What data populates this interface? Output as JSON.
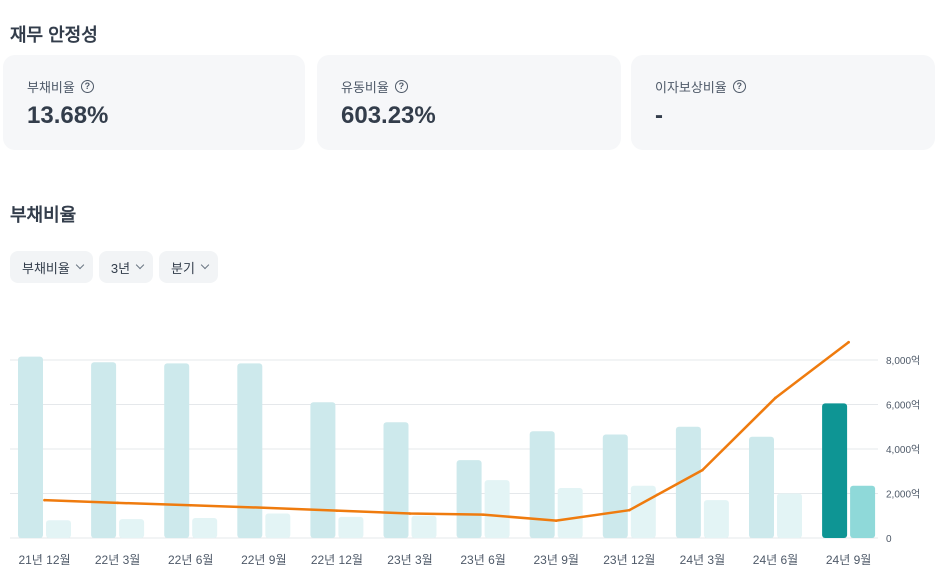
{
  "sections": {
    "stability_title": "재무 안정성",
    "chart_title": "부채비율"
  },
  "cards": [
    {
      "label": "부채비율",
      "value": "13.68%"
    },
    {
      "label": "유동비율",
      "value": "603.23%"
    },
    {
      "label": "이자보상비율",
      "value": "-"
    }
  ],
  "help_glyph": "?",
  "filters": [
    {
      "label": "부채비율"
    },
    {
      "label": "3년"
    },
    {
      "label": "분기"
    }
  ],
  "colors": {
    "bar_light": "#cde9ec",
    "bar_lighter": "#e3f4f5",
    "bar_highlight": "#0e9594",
    "bar_highlight_2": "#8fd9d9",
    "line": "#ef7b0e",
    "grid": "#e5e8eb"
  },
  "chart_data": {
    "type": "bar",
    "categories": [
      "21년 12월",
      "22년 3월",
      "22년 6월",
      "22년 9월",
      "22년 12월",
      "23년 3월",
      "23년 6월",
      "23년 9월",
      "23년 12월",
      "24년 3월",
      "24년 6월",
      "24년 9월"
    ],
    "series": [
      {
        "values": [
          8150,
          7900,
          7850,
          7850,
          6100,
          5200,
          3500,
          4800,
          4650,
          5000,
          4550,
          6050
        ]
      },
      {
        "values": [
          800,
          850,
          900,
          1100,
          950,
          1000,
          2600,
          2250,
          2350,
          1700,
          2000,
          2350
        ]
      },
      {
        "type": "line",
        "values": [
          1700,
          1580,
          1470,
          1360,
          1230,
          1100,
          1050,
          780,
          1250,
          3050,
          6300,
          8800
        ]
      }
    ],
    "highlight_index": 11,
    "yticks": [
      "0",
      "2,000억",
      "4,000억",
      "6,000억",
      "8,000억"
    ],
    "ylim": [
      0,
      8000
    ],
    "grid": true,
    "legend": "none"
  }
}
